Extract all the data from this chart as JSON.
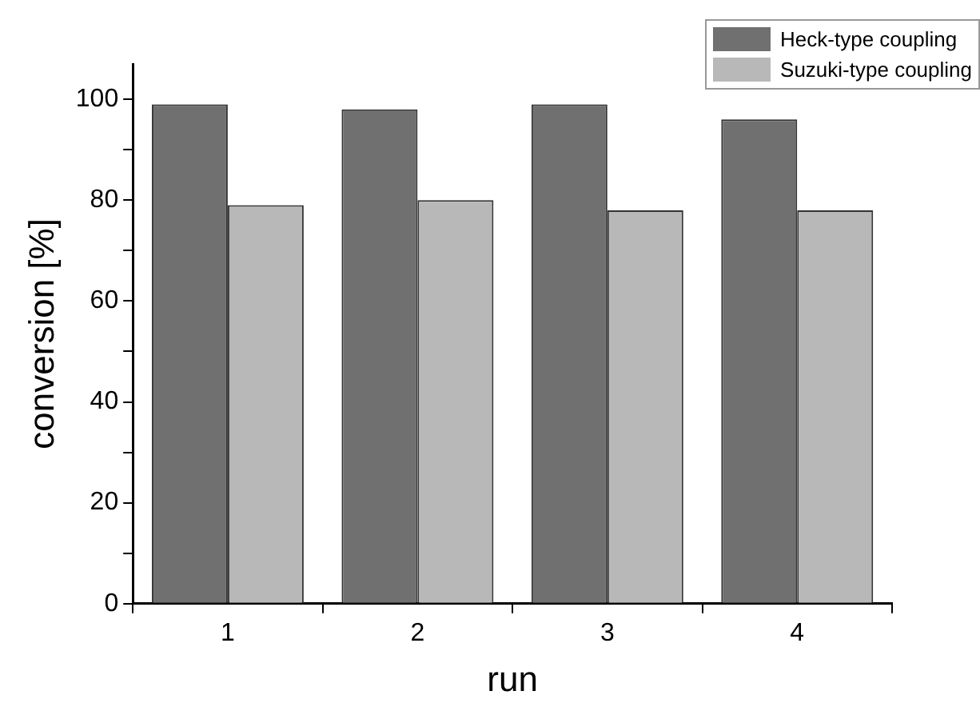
{
  "chart_data": {
    "type": "bar",
    "xlabel": "run",
    "ylabel": "conversion [%]",
    "categories": [
      "1",
      "2",
      "3",
      "4"
    ],
    "series": [
      {
        "name": "Heck-type coupling",
        "color": "#707070",
        "values": [
          99,
          98,
          99,
          96
        ]
      },
      {
        "name": "Suzuki-type coupling",
        "color": "#b8b8b8",
        "values": [
          79,
          80,
          78,
          78
        ]
      }
    ],
    "ylim": [
      0,
      107
    ],
    "yticks": [
      0,
      {
        "value": 10,
        "label": null
      },
      20,
      {
        "value": 30,
        "label": null
      },
      40,
      {
        "value": 50,
        "label": null
      },
      60,
      {
        "value": 70,
        "label": null
      },
      80,
      {
        "value": 90,
        "label": null
      },
      100
    ],
    "grid": false,
    "legend": "top right"
  }
}
